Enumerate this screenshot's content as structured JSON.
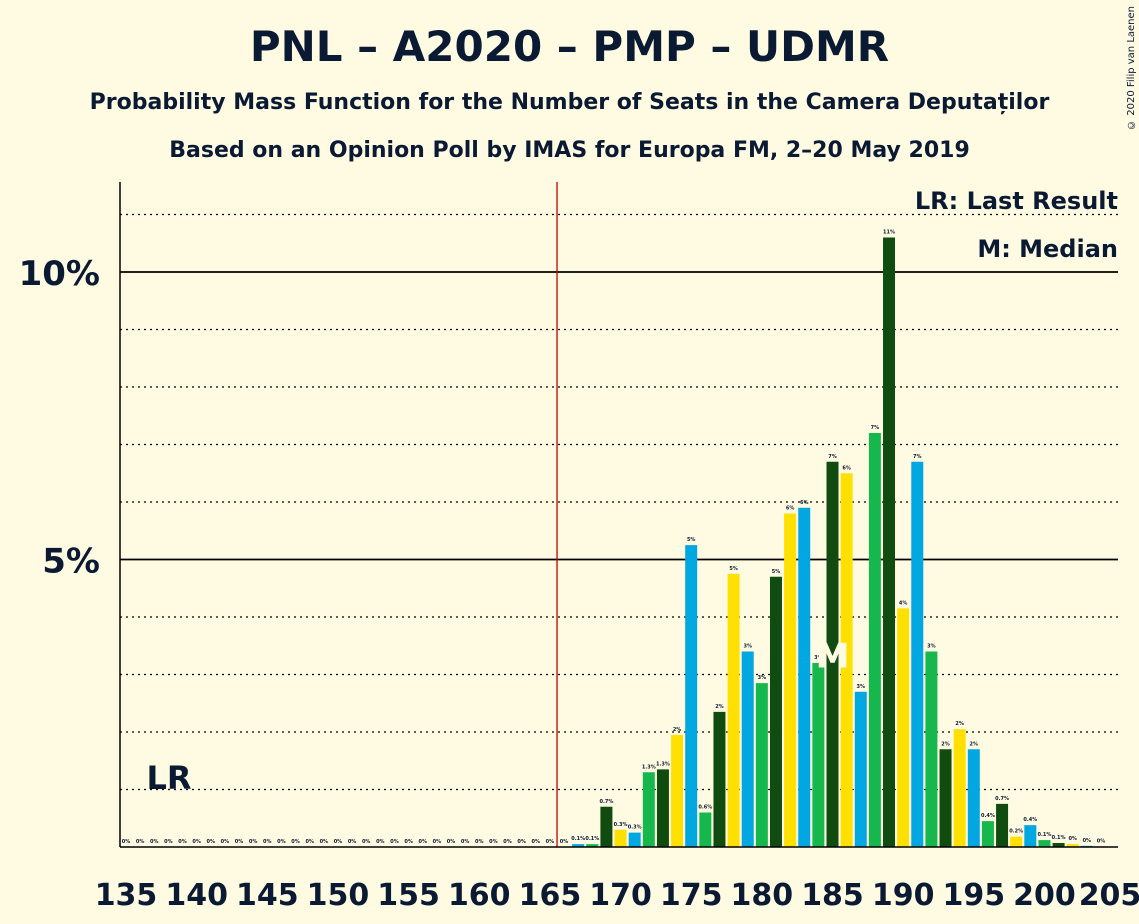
{
  "title": "PNL – A2020 – PMP – UDMR",
  "subtitle1": "Probability Mass Function for the Number of Seats in the Camera Deputaților",
  "subtitle2": "Based on an Opinion Poll by IMAS for Europa FM, 2–20 May 2019",
  "copyright": "© 2020 Filip van Laenen",
  "legend": {
    "lr": "LR: Last Result",
    "m": "M: Median"
  },
  "markers": {
    "lr_label": "LR",
    "median_label": "M"
  },
  "colors": {
    "background": "#FFFAE2",
    "blue": "#00A7E1",
    "green": "#16B84E",
    "darkgreen": "#104C10",
    "yellow": "#FFE000",
    "last_result_line": "#C00000"
  },
  "chart_data": {
    "type": "bar",
    "xlabel": "",
    "ylabel": "",
    "xlim": [
      135,
      205
    ],
    "ylim": [
      0,
      11.5
    ],
    "y_ticks": [
      5,
      10
    ],
    "y_tick_labels": [
      "5%",
      "10%"
    ],
    "x_ticks": [
      135,
      140,
      145,
      150,
      155,
      160,
      165,
      170,
      175,
      180,
      185,
      190,
      195,
      200,
      205
    ],
    "last_result": 166,
    "median": 185,
    "color_cycle": [
      "blue",
      "green",
      "darkgreen",
      "yellow"
    ],
    "seats": [
      135,
      136,
      137,
      138,
      139,
      140,
      141,
      142,
      143,
      144,
      145,
      146,
      147,
      148,
      149,
      150,
      151,
      152,
      153,
      154,
      155,
      156,
      157,
      158,
      159,
      160,
      161,
      162,
      163,
      164,
      165,
      166,
      167,
      168,
      169,
      170,
      171,
      172,
      173,
      174,
      175,
      176,
      177,
      178,
      179,
      180,
      181,
      182,
      183,
      184,
      185,
      186,
      187,
      188,
      189,
      190,
      191,
      192,
      193,
      194,
      195,
      196,
      197,
      198,
      199,
      200,
      201,
      202,
      203,
      204
    ],
    "values": [
      0,
      0,
      0,
      0,
      0,
      0,
      0,
      0,
      0,
      0,
      0,
      0,
      0,
      0,
      0,
      0,
      0,
      0,
      0,
      0,
      0,
      0,
      0,
      0,
      0,
      0,
      0,
      0,
      0,
      0,
      0,
      0,
      0.05,
      0.05,
      0.7,
      0.3,
      0.25,
      1.3,
      1.35,
      1.95,
      5.25,
      0.6,
      2.35,
      4.75,
      3.4,
      2.85,
      4.7,
      5.8,
      5.9,
      3.2,
      6.7,
      6.5,
      2.7,
      7.2,
      10.6,
      4.15,
      6.7,
      3.4,
      1.7,
      2.05,
      1.7,
      0.45,
      0.75,
      0.18,
      0.38,
      0.12,
      0.07,
      0.05,
      0.02,
      0.01
    ],
    "labels": [
      "0%",
      "0%",
      "0%",
      "0%",
      "0%",
      "0%",
      "0%",
      "0%",
      "0%",
      "0%",
      "0%",
      "0%",
      "0%",
      "0%",
      "0%",
      "0%",
      "0%",
      "0%",
      "0%",
      "0%",
      "0%",
      "0%",
      "0%",
      "0%",
      "0%",
      "0%",
      "0%",
      "0%",
      "0%",
      "0%",
      "0%",
      "0%",
      "0.1%",
      "0.1%",
      "0.7%",
      "0.3%",
      "0.3%",
      "1.3%",
      "1.3%",
      "2%",
      "5%",
      "0.6%",
      "2%",
      "5%",
      "3%",
      "3%",
      "5%",
      "6%",
      "6%",
      "3%",
      "7%",
      "6%",
      "3%",
      "7%",
      "11%",
      "4%",
      "7%",
      "3%",
      "2%",
      "2%",
      "2%",
      "0.4%",
      "0.7%",
      "0.2%",
      "0.4%",
      "0.1%",
      "0.1%",
      "0%",
      "0%",
      "0%"
    ]
  }
}
